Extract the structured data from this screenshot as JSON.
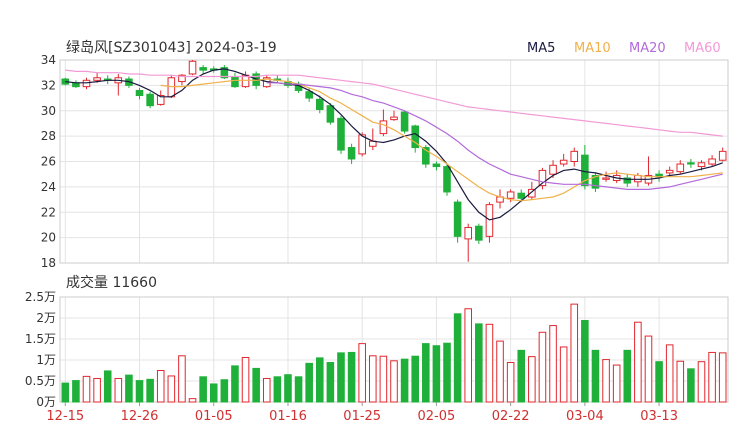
{
  "header": {
    "title": "绿岛风[SZ301043] 2024-03-19",
    "legend": [
      {
        "label": "MA5",
        "color": "#1a1a40"
      },
      {
        "label": "MA10",
        "color": "#f0b14a"
      },
      {
        "label": "MA20",
        "color": "#b36bd9"
      },
      {
        "label": "MA60",
        "color": "#f29ad6"
      }
    ]
  },
  "volume_title": "成交量 11660",
  "colors": {
    "up": "#e0282e",
    "down": "#1fb03a",
    "grid": "#e4e4e4",
    "axis": "#333333",
    "date": "#d03030"
  },
  "chart_data": [
    {
      "type": "candlestick",
      "title": "绿岛风[SZ301043] 2024-03-19",
      "ylim": [
        18,
        34
      ],
      "yticks": [
        18,
        20,
        22,
        24,
        26,
        28,
        30,
        32,
        34
      ],
      "xtick_labels": [
        "12-15",
        "12-26",
        "01-05",
        "01-16",
        "01-25",
        "02-05",
        "02-22",
        "03-04",
        "03-13"
      ],
      "xtick_index": [
        0,
        7,
        14,
        21,
        28,
        35,
        42,
        49,
        56
      ],
      "candles": [
        [
          32.5,
          32.1,
          32.6,
          32.0
        ],
        [
          32.2,
          31.9,
          32.4,
          31.8
        ],
        [
          31.9,
          32.4,
          32.6,
          31.7
        ],
        [
          32.4,
          32.6,
          33.0,
          32.2
        ],
        [
          32.5,
          32.4,
          32.8,
          32.1
        ],
        [
          32.2,
          32.6,
          32.9,
          31.2
        ],
        [
          32.5,
          32.0,
          32.7,
          31.8
        ],
        [
          31.6,
          31.2,
          31.8,
          30.9
        ],
        [
          31.3,
          30.4,
          31.5,
          30.2
        ],
        [
          30.5,
          31.2,
          31.6,
          30.4
        ],
        [
          31.1,
          32.6,
          32.8,
          31.0
        ],
        [
          32.3,
          32.8,
          32.9,
          32.0
        ],
        [
          32.9,
          33.9,
          34.0,
          32.8
        ],
        [
          33.4,
          33.2,
          33.6,
          32.9
        ],
        [
          33.3,
          33.2,
          33.5,
          33.0
        ],
        [
          33.4,
          32.6,
          33.6,
          32.5
        ],
        [
          32.7,
          31.9,
          33.0,
          31.8
        ],
        [
          31.9,
          32.8,
          33.1,
          31.8
        ],
        [
          32.9,
          32.0,
          33.1,
          31.7
        ],
        [
          31.9,
          32.6,
          32.8,
          31.8
        ],
        [
          32.5,
          32.4,
          32.8,
          32.2
        ],
        [
          32.3,
          32.0,
          32.6,
          31.8
        ],
        [
          32.1,
          31.6,
          32.3,
          31.4
        ],
        [
          31.5,
          31.0,
          31.8,
          30.7
        ],
        [
          30.9,
          30.1,
          31.2,
          29.8
        ],
        [
          30.4,
          29.1,
          30.6,
          28.9
        ],
        [
          29.4,
          26.9,
          29.6,
          26.6
        ],
        [
          27.1,
          26.2,
          27.4,
          25.8
        ],
        [
          26.6,
          28.1,
          28.3,
          26.4
        ],
        [
          27.2,
          27.6,
          28.6,
          26.9
        ],
        [
          28.2,
          29.2,
          30.1,
          28.0
        ],
        [
          29.3,
          29.5,
          30.0,
          29.2
        ],
        [
          29.9,
          28.4,
          30.0,
          28.2
        ],
        [
          28.8,
          27.1,
          28.9,
          26.7
        ],
        [
          27.1,
          25.8,
          27.3,
          25.5
        ],
        [
          25.8,
          25.6,
          26.0,
          25.3
        ],
        [
          25.6,
          23.6,
          25.8,
          23.3
        ],
        [
          22.8,
          20.1,
          23.0,
          19.6
        ],
        [
          19.9,
          20.8,
          21.1,
          18.1
        ],
        [
          20.9,
          19.8,
          21.1,
          19.5
        ],
        [
          20.1,
          22.6,
          22.8,
          19.6
        ],
        [
          22.8,
          23.2,
          23.8,
          22.3
        ],
        [
          23.1,
          23.6,
          23.8,
          22.8
        ],
        [
          23.5,
          23.1,
          23.8,
          22.8
        ],
        [
          23.2,
          23.8,
          24.4,
          23.0
        ],
        [
          24.1,
          25.3,
          25.5,
          23.8
        ],
        [
          25.0,
          25.7,
          26.1,
          24.7
        ],
        [
          25.8,
          26.1,
          26.6,
          25.6
        ],
        [
          26.0,
          26.8,
          27.1,
          25.6
        ],
        [
          26.5,
          24.1,
          27.3,
          23.8
        ],
        [
          24.9,
          23.9,
          25.1,
          23.6
        ],
        [
          24.6,
          24.7,
          25.2,
          24.4
        ],
        [
          24.5,
          24.9,
          25.3,
          24.3
        ],
        [
          24.7,
          24.3,
          25.0,
          24.0
        ],
        [
          24.4,
          24.9,
          25.1,
          24.0
        ],
        [
          24.3,
          24.9,
          26.4,
          24.1
        ],
        [
          25.0,
          24.8,
          25.3,
          24.4
        ],
        [
          25.1,
          25.3,
          25.6,
          24.8
        ],
        [
          25.2,
          25.8,
          26.1,
          25.0
        ],
        [
          25.9,
          25.8,
          26.2,
          25.5
        ],
        [
          25.6,
          25.9,
          26.1,
          25.3
        ],
        [
          25.8,
          26.2,
          26.5,
          25.6
        ],
        [
          26.1,
          26.8,
          27.1,
          26.0
        ]
      ],
      "ma": {
        "MA5": [
          32.3,
          32.2,
          32.2,
          32.3,
          32.4,
          32.4,
          32.3,
          32.0,
          31.6,
          31.1,
          31.1,
          31.6,
          32.4,
          32.9,
          33.2,
          33.3,
          33.1,
          32.8,
          32.5,
          32.3,
          32.2,
          32.1,
          32.0,
          31.6,
          31.1,
          30.5,
          29.7,
          28.8,
          28.0,
          27.6,
          27.5,
          27.7,
          28.0,
          28.2,
          27.6,
          26.8,
          25.8,
          24.4,
          23.0,
          22.0,
          21.4,
          21.6,
          22.2,
          22.9,
          23.6,
          24.3,
          24.9,
          25.3,
          25.4,
          25.2,
          25.1,
          24.9,
          24.7,
          24.6,
          24.6,
          24.6,
          24.7,
          24.9,
          25.0,
          25.2,
          25.4,
          25.6,
          25.9
        ],
        "MA10": [
          null,
          null,
          null,
          null,
          null,
          null,
          null,
          null,
          null,
          32.0,
          31.9,
          31.9,
          32.0,
          32.1,
          32.2,
          32.3,
          32.4,
          32.4,
          32.4,
          32.5,
          32.4,
          32.3,
          32.1,
          31.8,
          31.5,
          31.0,
          30.6,
          30.1,
          29.6,
          29.1,
          28.9,
          28.5,
          28.0,
          27.5,
          26.9,
          26.4,
          25.8,
          25.2,
          24.6,
          24.0,
          23.5,
          23.2,
          23.0,
          22.9,
          23.0,
          23.1,
          23.2,
          23.5,
          24.0,
          24.5,
          24.8,
          25.0,
          25.1,
          25.0,
          24.9,
          24.8,
          24.8,
          24.8,
          24.8,
          24.8,
          24.9,
          25.0,
          25.1
        ],
        "MA20": [
          null,
          null,
          null,
          null,
          null,
          null,
          null,
          null,
          null,
          null,
          null,
          null,
          null,
          null,
          null,
          null,
          null,
          null,
          null,
          32.2,
          32.2,
          32.1,
          32.1,
          32.0,
          31.9,
          31.8,
          31.6,
          31.3,
          31.1,
          30.8,
          30.6,
          30.3,
          30.0,
          29.6,
          29.2,
          28.7,
          28.2,
          27.6,
          26.9,
          26.3,
          25.8,
          25.4,
          25.0,
          24.8,
          24.6,
          24.4,
          24.3,
          24.2,
          24.2,
          24.2,
          24.1,
          24.0,
          23.9,
          23.8,
          23.8,
          23.8,
          23.9,
          24.0,
          24.2,
          24.4,
          24.6,
          24.8,
          25.0
        ],
        "MA60": [
          33.2,
          33.1,
          33.1,
          33.0,
          33.0,
          33.0,
          32.9,
          32.9,
          32.8,
          32.8,
          32.8,
          32.7,
          32.7,
          32.7,
          32.7,
          32.7,
          32.7,
          32.7,
          32.7,
          32.8,
          32.8,
          32.8,
          32.8,
          32.7,
          32.6,
          32.5,
          32.4,
          32.3,
          32.2,
          32.1,
          31.9,
          31.7,
          31.5,
          31.3,
          31.1,
          30.9,
          30.7,
          30.5,
          30.3,
          30.2,
          30.1,
          30.0,
          29.9,
          29.8,
          29.7,
          29.6,
          29.5,
          29.4,
          29.3,
          29.2,
          29.1,
          29.0,
          28.9,
          28.8,
          28.7,
          28.6,
          28.5,
          28.4,
          28.3,
          28.3,
          28.2,
          28.1,
          28.0
        ]
      }
    },
    {
      "type": "bar",
      "title": "成交量 11660",
      "ylim": [
        0,
        25000
      ],
      "ytick_labels": [
        "0万",
        "0.5万",
        "1万",
        "1.5万",
        "2万",
        "2.5万"
      ],
      "ytick_values": [
        0,
        5000,
        10000,
        15000,
        20000,
        25000
      ],
      "values": [
        4500,
        5100,
        6100,
        5600,
        7400,
        5600,
        6400,
        5100,
        5400,
        7500,
        6200,
        11000,
        800,
        6000,
        4300,
        5300,
        8600,
        10600,
        8000,
        5600,
        6000,
        6500,
        6000,
        9200,
        10500,
        9400,
        11700,
        11800,
        13900,
        11000,
        10900,
        9800,
        10200,
        10900,
        13900,
        13400,
        14000,
        21000,
        22200,
        18600,
        18500,
        14500,
        9400,
        12300,
        10800,
        16600,
        18200,
        13100,
        23300,
        19400,
        12300,
        10100,
        8800,
        12300,
        19000,
        15700,
        9600,
        13600,
        9700,
        7900,
        9600,
        11800,
        11700
      ]
    }
  ]
}
